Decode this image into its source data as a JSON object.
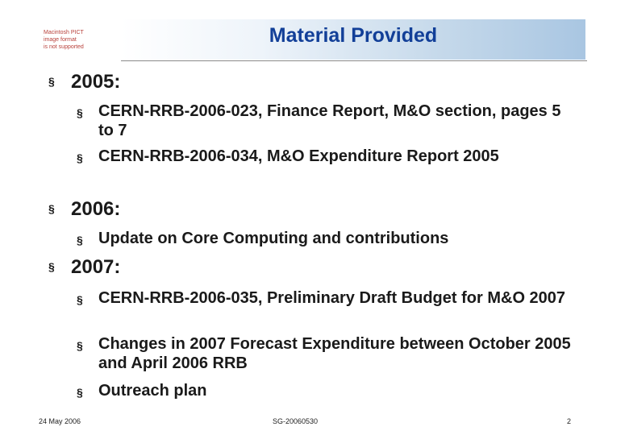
{
  "logo": {
    "line1": "Macintosh PICT",
    "line2": "image format",
    "line3": "is not supported"
  },
  "slide": {
    "title": "Material Provided",
    "bullet_glyph": "§",
    "sections": [
      {
        "heading": "2005:",
        "items": [
          "CERN-RRB-2006-023, Finance Report, M&O section, pages 5 to 7",
          "CERN-RRB-2006-034, M&O Expenditure Report 2005"
        ]
      },
      {
        "heading": "2006:",
        "items": [
          "Update on Core Computing and contributions"
        ]
      },
      {
        "heading": "2007:",
        "items": [
          "CERN-RRB-2006-035, Preliminary Draft Budget for M&O 2007",
          "Changes in 2007 Forecast Expenditure between October 2005 and April 2006 RRB",
          "Outreach plan"
        ]
      }
    ]
  },
  "footer": {
    "date": "24 May 2006",
    "doc_id": "SG-20060530",
    "page_number": "2"
  }
}
